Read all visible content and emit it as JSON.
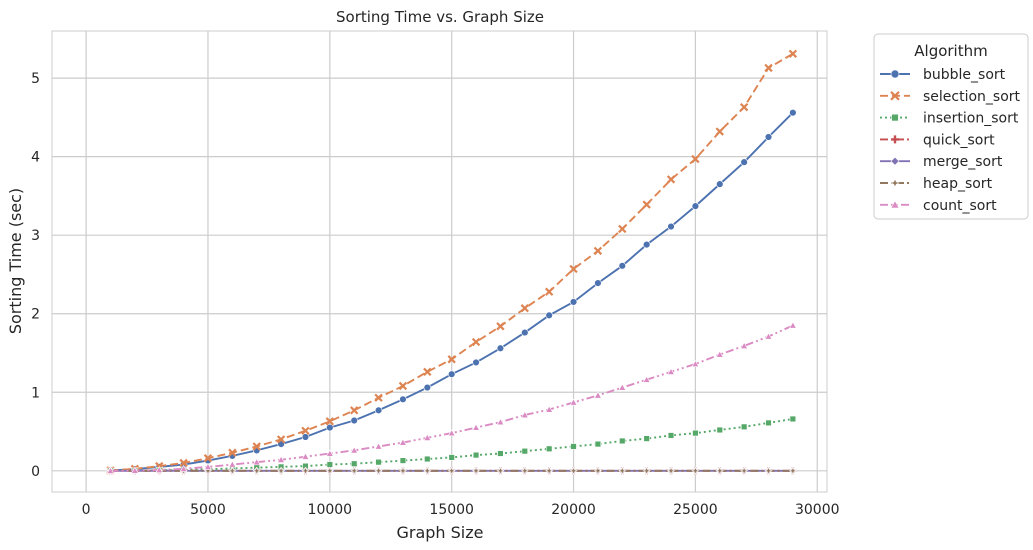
{
  "chart_data": {
    "type": "line",
    "title": "Sorting Time vs. Graph Size",
    "xlabel": "Graph Size",
    "ylabel": "Sorting Time (sec)",
    "xlim": [
      -1400,
      30400
    ],
    "ylim": [
      -0.27,
      5.6
    ],
    "xticks": [
      0,
      5000,
      10000,
      15000,
      20000,
      25000,
      30000
    ],
    "yticks": [
      0,
      1,
      2,
      3,
      4,
      5
    ],
    "grid": true,
    "legend": {
      "title": "Algorithm",
      "placement": "outside-top-right"
    },
    "x": [
      1000,
      2000,
      3000,
      4000,
      5000,
      6000,
      7000,
      8000,
      9000,
      10000,
      11000,
      12000,
      13000,
      14000,
      15000,
      16000,
      17000,
      18000,
      19000,
      20000,
      21000,
      22000,
      23000,
      24000,
      25000,
      26000,
      27000,
      28000,
      29000
    ],
    "series": [
      {
        "name": "bubble_sort",
        "color": "#4c72b0",
        "dash": "",
        "marker": "circle",
        "values": [
          0.005,
          0.02,
          0.05,
          0.08,
          0.13,
          0.19,
          0.26,
          0.34,
          0.43,
          0.55,
          0.64,
          0.77,
          0.91,
          1.06,
          1.23,
          1.38,
          1.56,
          1.76,
          1.98,
          2.15,
          2.39,
          2.61,
          2.88,
          3.11,
          3.37,
          3.65,
          3.93,
          4.25,
          4.56
        ]
      },
      {
        "name": "selection_sort",
        "color": "#dd8452",
        "dash": "8,4",
        "marker": "x",
        "values": [
          0.005,
          0.025,
          0.06,
          0.1,
          0.16,
          0.23,
          0.31,
          0.4,
          0.51,
          0.63,
          0.77,
          0.93,
          1.08,
          1.26,
          1.42,
          1.64,
          1.84,
          2.07,
          2.28,
          2.57,
          2.8,
          3.08,
          3.39,
          3.71,
          3.97,
          4.32,
          4.63,
          5.13,
          5.31
        ]
      },
      {
        "name": "insertion_sort",
        "color": "#55a868",
        "dash": "2,3",
        "marker": "square",
        "values": [
          0.0,
          0.002,
          0.006,
          0.01,
          0.02,
          0.03,
          0.04,
          0.05,
          0.06,
          0.08,
          0.09,
          0.11,
          0.13,
          0.15,
          0.17,
          0.2,
          0.22,
          0.25,
          0.28,
          0.31,
          0.34,
          0.38,
          0.41,
          0.45,
          0.48,
          0.52,
          0.56,
          0.61,
          0.66
        ]
      },
      {
        "name": "quick_sort",
        "color": "#c44e52",
        "dash": "8,3,2,3",
        "marker": "plus",
        "values": [
          0.0,
          0.0,
          0.0,
          0.0,
          0.0,
          0.0,
          0.0,
          0.0,
          0.0,
          0.0,
          0.0,
          0.0,
          0.0,
          0.0,
          0.0,
          0.0,
          0.0,
          0.0,
          0.0,
          0.0,
          0.0,
          0.0,
          0.0,
          0.0,
          0.0,
          0.0,
          0.0,
          0.0,
          0.0
        ]
      },
      {
        "name": "merge_sort",
        "color": "#8172b3",
        "dash": "",
        "marker": "diamond",
        "values": [
          0.0,
          0.0,
          0.0,
          0.0,
          0.0,
          0.0,
          0.0,
          0.0,
          0.0,
          0.0,
          0.0,
          0.0,
          0.0,
          0.0,
          0.0,
          0.0,
          0.0,
          0.0,
          0.0,
          0.0,
          0.0,
          0.0,
          0.0,
          0.0,
          0.0,
          0.0,
          0.0,
          0.0,
          0.0
        ]
      },
      {
        "name": "heap_sort",
        "color": "#937860",
        "dash": "8,3,2,3",
        "marker": "star",
        "values": [
          0.0,
          0.0,
          0.0,
          0.0,
          0.0,
          0.0,
          0.0,
          0.0,
          0.0,
          0.0,
          0.0,
          0.0,
          0.0,
          0.0,
          0.0,
          0.0,
          0.0,
          0.0,
          0.0,
          0.0,
          0.0,
          0.0,
          0.0,
          0.0,
          0.0,
          0.0,
          0.0,
          0.0,
          0.0
        ]
      },
      {
        "name": "count_sort",
        "color": "#da8bc3",
        "dash": "8,3,2,3,2,3",
        "marker": "triangle",
        "values": [
          0.0,
          0.002,
          0.01,
          0.025,
          0.05,
          0.08,
          0.11,
          0.14,
          0.18,
          0.22,
          0.26,
          0.31,
          0.36,
          0.42,
          0.48,
          0.55,
          0.62,
          0.71,
          0.78,
          0.87,
          0.96,
          1.06,
          1.16,
          1.26,
          1.36,
          1.48,
          1.59,
          1.71,
          1.85
        ]
      }
    ]
  }
}
